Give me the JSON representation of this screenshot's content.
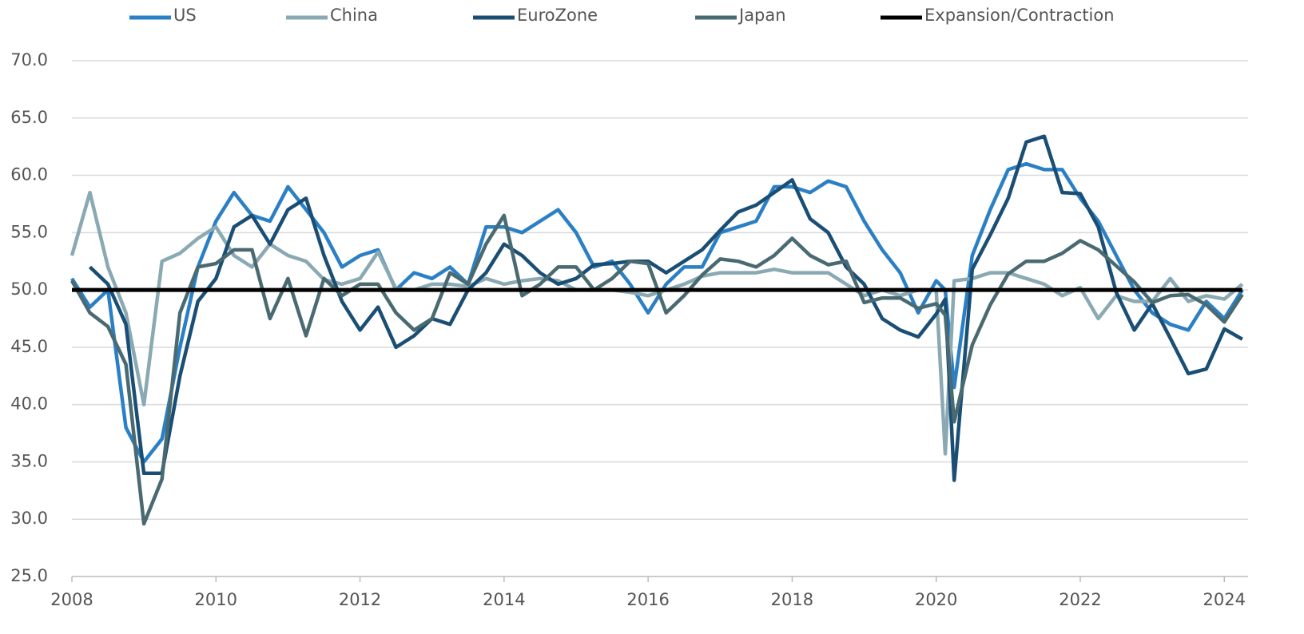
{
  "chart_data": {
    "type": "line",
    "x": [
      2008,
      2008.25,
      2008.5,
      2008.75,
      2009,
      2009.25,
      2009.5,
      2009.75,
      2010,
      2010.25,
      2010.5,
      2010.75,
      2011,
      2011.25,
      2011.5,
      2011.75,
      2012,
      2012.25,
      2012.5,
      2012.75,
      2013,
      2013.25,
      2013.5,
      2013.75,
      2014,
      2014.25,
      2014.5,
      2014.75,
      2015,
      2015.25,
      2015.5,
      2015.75,
      2016,
      2016.25,
      2016.5,
      2016.75,
      2017,
      2017.25,
      2017.5,
      2017.75,
      2018,
      2018.25,
      2018.5,
      2018.75,
      2019,
      2019.25,
      2019.5,
      2019.75,
      2020,
      2020.125,
      2020.25,
      2020.5,
      2020.75,
      2021,
      2021.25,
      2021.5,
      2021.75,
      2022,
      2022.25,
      2022.5,
      2022.75,
      2023,
      2023.25,
      2023.5,
      2023.75,
      2024,
      2024.25
    ],
    "series": [
      {
        "name": "US",
        "color": "#2b80c5",
        "values": [
          51,
          48.5,
          50,
          38,
          35,
          37,
          45,
          52,
          56,
          58.5,
          56.5,
          56,
          59,
          57,
          55,
          52,
          53,
          53.5,
          50,
          51.5,
          51,
          52,
          50.5,
          55.5,
          55.5,
          55,
          56,
          57,
          55,
          52,
          52.5,
          50.5,
          48,
          50.5,
          52,
          52,
          55,
          55.5,
          56,
          59,
          59,
          58.5,
          59.5,
          59,
          56,
          53.5,
          51.5,
          48,
          50.8,
          50,
          41.5,
          53,
          57,
          60.5,
          61,
          60.5,
          60.5,
          58,
          56,
          53,
          50,
          48,
          47,
          46.5,
          49,
          47.5,
          50
        ]
      },
      {
        "name": "China",
        "color": "#8aa9b3",
        "values": [
          53,
          58.5,
          52,
          48,
          40,
          52.5,
          53.2,
          54.5,
          55.5,
          53,
          52,
          54,
          53,
          52.5,
          50.9,
          50.5,
          51,
          53.3,
          50.1,
          50,
          50.5,
          50.5,
          50.3,
          51,
          50.5,
          50.8,
          51,
          50.8,
          50,
          50,
          50,
          49.8,
          49.5,
          50,
          50.5,
          51.2,
          51.5,
          51.5,
          51.5,
          51.8,
          51.5,
          51.5,
          51.5,
          50.5,
          49.5,
          50,
          49.5,
          50,
          50,
          35.7,
          50.8,
          51,
          51.5,
          51.5,
          51,
          50.5,
          49.5,
          50.2,
          47.5,
          49.5,
          49,
          49,
          51,
          49,
          49.5,
          49.2,
          50.5
        ]
      },
      {
        "name": "EuroZone",
        "color": "#1a4e74",
        "values": [
          null,
          52,
          50.5,
          47,
          34,
          34,
          42.5,
          49,
          51,
          55.5,
          56.5,
          54,
          57,
          58,
          53,
          49,
          46.5,
          48.5,
          45,
          46,
          47.5,
          47,
          50,
          51.5,
          54,
          53,
          51.5,
          50.5,
          51,
          52.2,
          52.3,
          52.5,
          52.5,
          51.5,
          52.5,
          53.5,
          55.2,
          56.8,
          57.4,
          58.5,
          59.6,
          56.2,
          55,
          52,
          50.5,
          47.5,
          46.5,
          45.9,
          47.9,
          49.2,
          33.4,
          51.8,
          54.8,
          58,
          62.9,
          63.4,
          58.5,
          58.4,
          55.5,
          49.8,
          46.5,
          48.8,
          45.8,
          42.7,
          43.1,
          46.6,
          45.7
        ]
      },
      {
        "name": "Japan",
        "color": "#4a6a72",
        "values": [
          50.8,
          48,
          46.8,
          43.5,
          29.6,
          33.5,
          48,
          52,
          52.3,
          53.5,
          53.5,
          47.5,
          51,
          46,
          51,
          49.5,
          50.5,
          50.5,
          48,
          46.5,
          47.5,
          51.5,
          50.5,
          54,
          56.5,
          49.5,
          50.5,
          52,
          52,
          50,
          51,
          52.5,
          52.3,
          48,
          49.5,
          51.3,
          52.7,
          52.5,
          52,
          53,
          54.5,
          53,
          52.2,
          52.5,
          48.9,
          49.3,
          49.3,
          48.4,
          48.8,
          47.8,
          38.5,
          45.2,
          48.7,
          51.4,
          52.5,
          52.5,
          53.2,
          54.3,
          53.5,
          52.1,
          50.7,
          48.9,
          49.5,
          49.6,
          48.7,
          47.2,
          49.6
        ]
      },
      {
        "name": "Expansion/Contraction",
        "color": "#000000",
        "values": [
          50,
          50,
          50,
          50,
          50,
          50,
          50,
          50,
          50,
          50,
          50,
          50,
          50,
          50,
          50,
          50,
          50,
          50,
          50,
          50,
          50,
          50,
          50,
          50,
          50,
          50,
          50,
          50,
          50,
          50,
          50,
          50,
          50,
          50,
          50,
          50,
          50,
          50,
          50,
          50,
          50,
          50,
          50,
          50,
          50,
          50,
          50,
          50,
          50,
          50,
          50,
          50,
          50,
          50,
          50,
          50,
          50,
          50,
          50,
          50,
          50,
          50,
          50,
          50,
          50,
          50,
          50
        ]
      }
    ],
    "xlim": [
      2008,
      2024.33
    ],
    "xticks": [
      2008,
      2010,
      2012,
      2014,
      2016,
      2018,
      2020,
      2022,
      2024
    ],
    "ylim": [
      25,
      70
    ],
    "yticks": [
      {
        "value": 25,
        "label": "25.0"
      },
      {
        "value": 30,
        "label": "30.0"
      },
      {
        "value": 35,
        "label": "35.0"
      },
      {
        "value": 40,
        "label": "40.0"
      },
      {
        "value": 45,
        "label": "45.0"
      },
      {
        "value": 50,
        "label": "50.0"
      },
      {
        "value": 55,
        "label": "55.0"
      },
      {
        "value": 60,
        "label": "60.0"
      },
      {
        "value": 65,
        "label": "65.0"
      },
      {
        "value": 70,
        "label": "70.0"
      }
    ],
    "grid": true,
    "legend": "top"
  }
}
